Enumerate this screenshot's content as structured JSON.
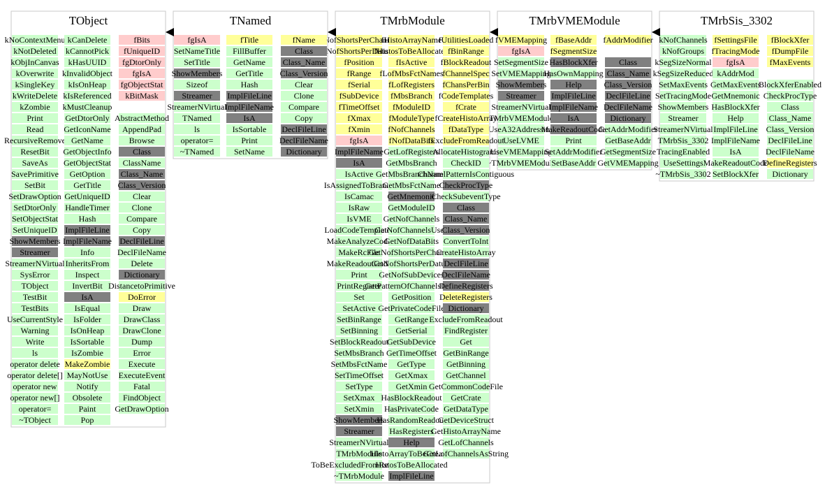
{
  "boxes": [
    {
      "title": "TObject",
      "columns": [
        [
          "kNoContextMenu",
          "kNotDeleted",
          "kObjInCanvas",
          "kOverwrite",
          "kSingleKey",
          "kWriteDelete",
          "kZombie",
          "Print",
          "Read",
          "RecursiveRemove",
          "ResetBit",
          "SaveAs",
          "SavePrimitive",
          "SetBit",
          "SetDrawOption",
          "SetDtorOnly",
          "SetObjectStat",
          "SetUniqueID",
          {
            "text": "ShowMembers",
            "fill": "#808080"
          },
          {
            "text": "Streamer",
            "fill": "#808080"
          },
          "StreamerNVirtual",
          "SysError",
          "TObject",
          "TestBit",
          "TestBits",
          "UseCurrentStyle",
          "Warning",
          "Write",
          "ls",
          "operator delete",
          "operator delete[]",
          "operator new",
          "operator new[]",
          "operator=",
          "~TObject"
        ],
        [
          "kCanDelete",
          "kCannotPick",
          "kHasUUID",
          "kInvalidObject",
          "kIsOnHeap",
          "kIsReferenced",
          "kMustCleanup",
          "GetDtorOnly",
          "GetIconName",
          "GetName",
          "GetObjectInfo",
          "GetObjectStat",
          "GetOption",
          "GetTitle",
          "GetUniqueID",
          "HandleTimer",
          "Hash",
          {
            "text": "ImplFileLine",
            "fill": "#808080"
          },
          {
            "text": "ImplFileName",
            "fill": "#808080"
          },
          "Info",
          "InheritsFrom",
          "Inspect",
          "InvertBit",
          {
            "text": "IsA",
            "fill": "#808080"
          },
          "IsEqual",
          "IsFolder",
          "IsOnHeap",
          "IsSortable",
          "IsZombie",
          {
            "text": "MakeZombie",
            "fill": "#ffff99"
          },
          "MayNotUse",
          "Notify",
          "Obsolete",
          "Paint",
          "Pop"
        ],
        [
          {
            "text": "fBits",
            "fill": "#ffcccc"
          },
          {
            "text": "fUniqueID",
            "fill": "#ffcccc"
          },
          {
            "text": "fgDtorOnly",
            "fill": "#ffcccc"
          },
          {
            "text": "fgIsA",
            "fill": "#ffcccc"
          },
          {
            "text": "fgObjectStat",
            "fill": "#ffcccc"
          },
          {
            "text": "kBitMask",
            "fill": "#ffcccc"
          },
          null,
          "AbstractMethod",
          "AppendPad",
          "Browse",
          {
            "text": "Class",
            "fill": "#808080"
          },
          "ClassName",
          {
            "text": "Class_Name",
            "fill": "#808080"
          },
          {
            "text": "Class_Version",
            "fill": "#808080"
          },
          "Clear",
          "Clone",
          "Compare",
          "Copy",
          {
            "text": "DeclFileLine",
            "fill": "#808080"
          },
          "DeclFileName",
          "Delete",
          {
            "text": "Dictionary",
            "fill": "#808080"
          },
          "DistancetoPrimitive",
          {
            "text": "DoError",
            "fill": "#ffff99"
          },
          "Draw",
          "DrawClass",
          "DrawClone",
          "Dump",
          "Error",
          "Execute",
          "ExecuteEvent",
          "Fatal",
          "FindObject",
          "GetDrawOption"
        ]
      ]
    },
    {
      "title": "TNamed",
      "columns": [
        [
          {
            "text": "fgIsA",
            "fill": "#ffcccc"
          },
          "SetNameTitle",
          "SetTitle",
          {
            "text": "ShowMembers",
            "fill": "#808080"
          },
          "Sizeof",
          {
            "text": "Streamer",
            "fill": "#808080"
          },
          "StreamerNVirtual",
          "TNamed",
          "ls",
          "operator=",
          "~TNamed"
        ],
        [
          {
            "text": "fTitle",
            "fill": "#ffff99"
          },
          "FillBuffer",
          "GetName",
          "GetTitle",
          "Hash",
          {
            "text": "ImplFileLine",
            "fill": "#808080"
          },
          {
            "text": "ImplFileName",
            "fill": "#808080"
          },
          {
            "text": "IsA",
            "fill": "#808080"
          },
          "IsSortable",
          "Print",
          "SetName"
        ],
        [
          {
            "text": "fName",
            "fill": "#ffff99"
          },
          {
            "text": "Class",
            "fill": "#808080"
          },
          {
            "text": "Class_Name",
            "fill": "#808080"
          },
          {
            "text": "Class_Version",
            "fill": "#808080"
          },
          "Clear",
          "Clone",
          "Compare",
          "Copy",
          {
            "text": "DeclFileLine",
            "fill": "#808080"
          },
          {
            "text": "DeclFileName",
            "fill": "#808080"
          },
          {
            "text": "Dictionary",
            "fill": "#808080"
          }
        ]
      ]
    },
    {
      "title": "TMrbModule",
      "columns": [
        [
          {
            "text": "fNofShortsPerChannel",
            "fill": "#ffff99"
          },
          {
            "text": "fNofShortsPerDatum",
            "fill": "#ffff99"
          },
          {
            "text": "fPosition",
            "fill": "#ffff99"
          },
          {
            "text": "fRange",
            "fill": "#ffff99"
          },
          {
            "text": "fSerial",
            "fill": "#ffff99"
          },
          {
            "text": "fSubDevice",
            "fill": "#ffff99"
          },
          {
            "text": "fTimeOffset",
            "fill": "#ffff99"
          },
          {
            "text": "fXmax",
            "fill": "#ffff99"
          },
          {
            "text": "fXmin",
            "fill": "#ffff99"
          },
          {
            "text": "fgIsA",
            "fill": "#ffcccc"
          },
          {
            "text": "ImplFileName",
            "fill": "#808080"
          },
          {
            "text": "IsA",
            "fill": "#808080"
          },
          "IsActive",
          "IsAssignedToBranch",
          "IsCamac",
          "IsRaw",
          "IsVME",
          "LoadCodeTemplates",
          "MakeAnalyzeCode",
          "MakeRcFile",
          "MakeReadoutCode",
          "Print",
          "PrintRegister",
          "Set",
          "SetActive",
          "SetBinRange",
          "SetBinning",
          "SetBlockReadout",
          "SetMbsBranch",
          "SetMbsFctName",
          "SetTimeOffset",
          "SetType",
          "SetXmax",
          "SetXmin",
          {
            "text": "ShowMembers",
            "fill": "#808080"
          },
          {
            "text": "Streamer",
            "fill": "#808080"
          },
          "StreamerNVirtual",
          "TMrbModule",
          "ToBeExcludedFromReadout",
          "~TMrbModule"
        ],
        [
          {
            "text": "fHistoArrayName",
            "fill": "#ffff99"
          },
          {
            "text": "fHistosToBeAllocated",
            "fill": "#ffff99"
          },
          {
            "text": "fIsActive",
            "fill": "#ffff99"
          },
          {
            "text": "fLofMbsFctNames",
            "fill": "#ffff99"
          },
          {
            "text": "fLofRegisters",
            "fill": "#ffff99"
          },
          {
            "text": "fMbsBranch",
            "fill": "#ffff99"
          },
          {
            "text": "fModuleID",
            "fill": "#ffff99"
          },
          {
            "text": "fModuleType",
            "fill": "#ffff99"
          },
          {
            "text": "fNofChannels",
            "fill": "#ffff99"
          },
          {
            "text": "fNofDataBits",
            "fill": "#ffff99"
          },
          "GetLofRegisters",
          "GetMbsBranch",
          "GetMbsBranchName",
          "GetMbsFctName",
          {
            "text": "GetMnemonic",
            "fill": "#808080"
          },
          "GetModuleID",
          "GetNofChannels",
          "GetNofChannelsUsed",
          "GetNofDataBits",
          "GetNofShortsPerChannel",
          "GetNofShortsPerDatum",
          "GetNofSubDevices",
          "GetPatternOfChannelsUsed",
          "GetPosition",
          "GetPrivateCodeFile",
          "GetRange",
          "GetSerial",
          "GetSubDevice",
          "GetTimeOffset",
          "GetType",
          "GetXmax",
          "GetXmin",
          "HasBlockReadout",
          "HasPrivateCode",
          "HasRandomReadout",
          "HasRegisters",
          {
            "text": "Help",
            "fill": "#808080"
          },
          "HistoArrayToBeCreated",
          "HistosToBeAllocated",
          {
            "text": "ImplFileLine",
            "fill": "#808080"
          }
        ],
        [
          {
            "text": "fUtilitiesLoaded",
            "fill": "#ffff99"
          },
          {
            "text": "fBinRange",
            "fill": "#ffff99"
          },
          {
            "text": "fBlockReadout",
            "fill": "#ffff99"
          },
          {
            "text": "fChannelSpec",
            "fill": "#ffff99"
          },
          {
            "text": "fChansPerBin",
            "fill": "#ffff99"
          },
          {
            "text": "fCodeTemplates",
            "fill": "#ffff99"
          },
          {
            "text": "fCrate",
            "fill": "#ffff99"
          },
          {
            "text": "fCreateHistoArray",
            "fill": "#ffff99"
          },
          {
            "text": "fDataType",
            "fill": "#ffff99"
          },
          {
            "text": "fExcludeFromReadout",
            "fill": "#ffff99"
          },
          "AllocateHistograms",
          "CheckID",
          "ChannelPatternIsContiguous",
          {
            "text": "CheckProcType",
            "fill": "#808080"
          },
          "CheckSubeventType",
          {
            "text": "Class",
            "fill": "#808080"
          },
          {
            "text": "Class_Name",
            "fill": "#808080"
          },
          {
            "text": "Class_Version",
            "fill": "#808080"
          },
          "ConvertToInt",
          "CreateHistoArray",
          {
            "text": "DeclFileLine",
            "fill": "#808080"
          },
          {
            "text": "DeclFileName",
            "fill": "#808080"
          },
          {
            "text": "DefineRegisters",
            "fill": "#808080"
          },
          {
            "text": "DeleteRegisters",
            "fill": "#ffff99"
          },
          {
            "text": "Dictionary",
            "fill": "#808080"
          },
          "ExcludeFromReadout",
          "FindRegister",
          "Get",
          "GetBinRange",
          "GetBinning",
          "GetChannel",
          "GetCommonCodeFile",
          "GetCrate",
          "GetDataType",
          "GetDeviceStruct",
          "GetHistoArrayName",
          "GetLofChannels",
          "GetLofChannelsAsString"
        ]
      ]
    },
    {
      "title": "TMrbVMEModule",
      "columns": [
        [
          {
            "text": "fVMEMapping",
            "fill": "#ffff99"
          },
          {
            "text": "fgIsA",
            "fill": "#ffcccc"
          },
          "SetSegmentSize",
          "SetVMEMapping",
          {
            "text": "ShowMembers",
            "fill": "#808080"
          },
          {
            "text": "Streamer",
            "fill": "#808080"
          },
          "StreamerNVirtual",
          "TMrbVMEModule",
          "UseA32Addressing",
          "UseLVME",
          "UseVMEMapping",
          "~TMrbVMEModule"
        ],
        [
          {
            "text": "fBaseAddr",
            "fill": "#ffff99"
          },
          {
            "text": "fSegmentSize",
            "fill": "#ffff99"
          },
          {
            "text": "HasBlockXfer",
            "fill": "#808080"
          },
          "HasOwnMapping",
          {
            "text": "Help",
            "fill": "#808080"
          },
          {
            "text": "ImplFileLine",
            "fill": "#808080"
          },
          {
            "text": "ImplFileName",
            "fill": "#808080"
          },
          {
            "text": "IsA",
            "fill": "#808080"
          },
          {
            "text": "MakeReadoutCode",
            "fill": "#808080"
          },
          "Print",
          "SetAddrModifier",
          "SetBaseAddr"
        ],
        [
          {
            "text": "fAddrModifier",
            "fill": "#ffff99"
          },
          null,
          {
            "text": "Class",
            "fill": "#808080"
          },
          {
            "text": "Class_Name",
            "fill": "#808080"
          },
          {
            "text": "Class_Version",
            "fill": "#808080"
          },
          {
            "text": "DeclFileLine",
            "fill": "#808080"
          },
          {
            "text": "DeclFileName",
            "fill": "#808080"
          },
          {
            "text": "Dictionary",
            "fill": "#808080"
          },
          "GetAddrModifier",
          "GetBaseAddr",
          "GetSegmentSize",
          "GetVMEMapping"
        ]
      ]
    },
    {
      "title": "TMrbSis_3302",
      "columns": [
        [
          "kNofChannels",
          "kNofGroups",
          "kSegSizeNormal",
          "kSegSizeReduced",
          "SetMaxEvents",
          "SetTracingMode",
          "ShowMembers",
          "Streamer",
          "StreamerNVirtual",
          "TMrbSis_3302",
          "TracingEnabled",
          "UseSettings",
          "~TMrbSis_3302"
        ],
        [
          {
            "text": "fSettingsFile",
            "fill": "#ffff99"
          },
          {
            "text": "fTracingMode",
            "fill": "#ffff99"
          },
          {
            "text": "fgIsA",
            "fill": "#ffcccc"
          },
          "kAddrMod",
          "GetMaxEvents",
          "GetMnemonic",
          "HasBlockXfer",
          "Help",
          "ImplFileLine",
          "ImplFileName",
          "IsA",
          "MakeReadoutCode",
          "SetBlockXfer"
        ],
        [
          {
            "text": "fBlockXfer",
            "fill": "#ffff99"
          },
          {
            "text": "fDumpFile",
            "fill": "#ffff99"
          },
          {
            "text": "fMaxEvents",
            "fill": "#ffff99"
          },
          null,
          "BlockXferEnabled",
          "CheckProcType",
          "Class",
          "Class_Name",
          "Class_Version",
          "DeclFileLine",
          "DeclFileName",
          {
            "text": "DefineRegisters",
            "fill": "#ffff99"
          },
          "Dictionary"
        ]
      ]
    }
  ]
}
